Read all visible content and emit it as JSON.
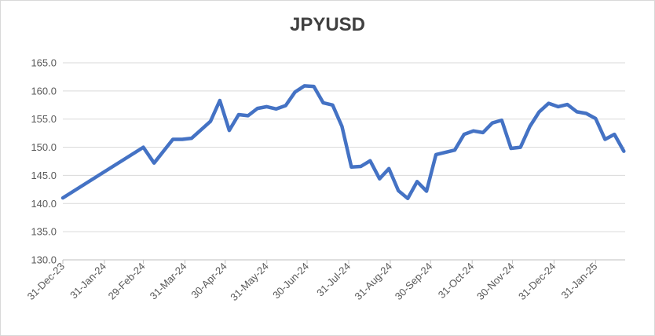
{
  "chart_data": {
    "type": "line",
    "title": "JPYUSD",
    "xlabel": "",
    "ylabel": "",
    "ylim": [
      130,
      165
    ],
    "yticks": [
      130,
      135,
      140,
      145,
      150,
      155,
      160,
      165
    ],
    "ytick_labels": [
      "130.0",
      "135.0",
      "140.0",
      "145.0",
      "150.0",
      "155.0",
      "160.0",
      "165.0"
    ],
    "xlim": [
      "2023-12-31",
      "2025-02-22"
    ],
    "xticks": [
      "2023-12-31",
      "2024-01-31",
      "2024-02-29",
      "2024-03-31",
      "2024-04-30",
      "2024-05-31",
      "2024-06-30",
      "2024-07-31",
      "2024-08-31",
      "2024-09-30",
      "2024-10-31",
      "2024-11-30",
      "2024-12-31",
      "2025-01-31"
    ],
    "xtick_labels": [
      "31-Dec-23",
      "31-Jan-24",
      "29-Feb-24",
      "31-Mar-24",
      "30-Apr-24",
      "31-May-24",
      "30-Jun-24",
      "31-Jul-24",
      "31-Aug-24",
      "30-Sep-24",
      "31-Oct-24",
      "30-Nov-24",
      "31-Dec-24",
      "31-Jan-25"
    ],
    "grid": true,
    "series_color": "#4472c4",
    "series": [
      {
        "points": [
          [
            "2023-12-31",
            141.0
          ],
          [
            "2024-02-29",
            150.0
          ],
          [
            "2024-03-08",
            147.2
          ],
          [
            "2024-03-22",
            151.4
          ],
          [
            "2024-03-29",
            151.4
          ],
          [
            "2024-04-05",
            151.6
          ],
          [
            "2024-04-19",
            154.6
          ],
          [
            "2024-04-26",
            158.3
          ],
          [
            "2024-05-03",
            153.0
          ],
          [
            "2024-05-10",
            155.8
          ],
          [
            "2024-05-17",
            155.6
          ],
          [
            "2024-05-24",
            156.9
          ],
          [
            "2024-05-31",
            157.2
          ],
          [
            "2024-06-07",
            156.8
          ],
          [
            "2024-06-14",
            157.4
          ],
          [
            "2024-06-21",
            159.8
          ],
          [
            "2024-06-28",
            160.9
          ],
          [
            "2024-07-05",
            160.8
          ],
          [
            "2024-07-12",
            157.9
          ],
          [
            "2024-07-19",
            157.5
          ],
          [
            "2024-07-26",
            153.7
          ],
          [
            "2024-08-02",
            146.5
          ],
          [
            "2024-08-09",
            146.6
          ],
          [
            "2024-08-16",
            147.6
          ],
          [
            "2024-08-23",
            144.4
          ],
          [
            "2024-08-30",
            146.2
          ],
          [
            "2024-09-06",
            142.3
          ],
          [
            "2024-09-13",
            140.9
          ],
          [
            "2024-09-20",
            143.9
          ],
          [
            "2024-09-27",
            142.2
          ],
          [
            "2024-10-04",
            148.7
          ],
          [
            "2024-10-18",
            149.5
          ],
          [
            "2024-10-25",
            152.3
          ],
          [
            "2024-11-01",
            152.9
          ],
          [
            "2024-11-08",
            152.6
          ],
          [
            "2024-11-15",
            154.3
          ],
          [
            "2024-11-22",
            154.8
          ],
          [
            "2024-11-29",
            149.8
          ],
          [
            "2024-12-06",
            150.0
          ],
          [
            "2024-12-13",
            153.7
          ],
          [
            "2024-12-20",
            156.3
          ],
          [
            "2024-12-27",
            157.8
          ],
          [
            "2025-01-03",
            157.2
          ],
          [
            "2025-01-10",
            157.6
          ],
          [
            "2025-01-17",
            156.3
          ],
          [
            "2025-01-24",
            156.0
          ],
          [
            "2025-01-31",
            155.1
          ],
          [
            "2025-02-07",
            151.4
          ],
          [
            "2025-02-14",
            152.3
          ],
          [
            "2025-02-21",
            149.3
          ]
        ]
      }
    ]
  }
}
